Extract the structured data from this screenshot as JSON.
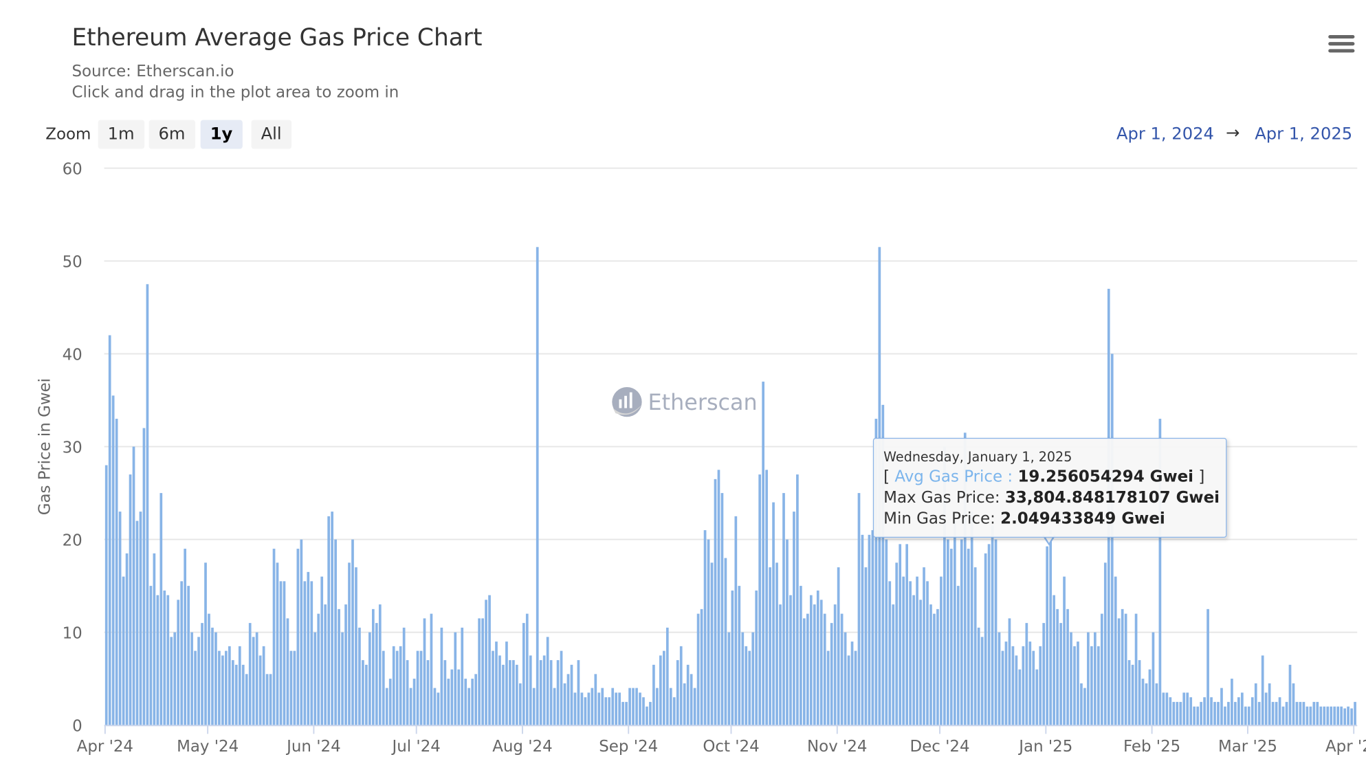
{
  "header": {
    "title": "Ethereum Average Gas Price Chart",
    "source": "Source: Etherscan.io",
    "hint": "Click and drag in the plot area to zoom in",
    "menu_icon": "hamburger-menu-icon"
  },
  "zoom": {
    "label": "Zoom",
    "buttons": [
      "1m",
      "6m",
      "1y",
      "All"
    ],
    "selected": "1y"
  },
  "range": {
    "from": "Apr 1, 2024",
    "arrow": "→",
    "to": "Apr 1, 2025"
  },
  "watermark": {
    "text": "Etherscan"
  },
  "tooltip": {
    "date": "Wednesday, January 1, 2025",
    "open": "[ ",
    "avg_label": "Avg Gas Price :",
    "avg_value": "19.256054294 Gwei",
    "close": " ]",
    "max_label": "Max Gas Price:",
    "max_value": "33,804.848178107 Gwei",
    "min_label": "Min Gas Price:",
    "min_value": "2.049433849 Gwei"
  },
  "colors": {
    "bar": "#88b4e7",
    "grid": "#e6e6e6",
    "range_text": "#3355aa"
  },
  "chart_data": {
    "type": "bar",
    "title": "Ethereum Average Gas Price Chart",
    "ylabel": "Gas Price in Gwei",
    "xlabel": "",
    "ylim": [
      0,
      60
    ],
    "yticks": [
      0,
      10,
      20,
      30,
      40,
      50,
      60
    ],
    "x_start": "2024-04-01",
    "x_end": "2025-04-01",
    "xtick_labels": [
      "Apr '24",
      "May '24",
      "Jun '24",
      "Jul '24",
      "Aug '24",
      "Sep '24",
      "Oct '24",
      "Nov '24",
      "Dec '24",
      "Jan '25",
      "Feb '25",
      "Mar '25",
      "Apr '25"
    ],
    "grid": true,
    "legend": "none",
    "highlighted": "2025-01-01",
    "months": [
      {
        "month": "2024-04",
        "values": [
          28,
          42,
          35.5,
          33,
          23,
          16,
          18.5,
          27,
          30,
          22,
          23,
          32,
          47.5,
          15,
          18.5,
          14,
          25,
          14.5,
          14,
          9.5,
          10,
          13.5,
          15.5,
          19,
          15,
          10,
          8,
          9.5,
          11,
          17.5
        ]
      },
      {
        "month": "2024-05",
        "values": [
          12,
          10.5,
          10,
          8,
          7.5,
          8,
          8.5,
          7,
          6.5,
          8.5,
          6.5,
          5.5,
          11,
          9.5,
          10,
          7.5,
          8.5,
          5.5,
          5.5,
          19,
          17.5,
          15.5,
          15.5,
          11.5,
          8,
          8,
          19,
          20,
          15.5,
          16.5,
          15.5
        ]
      },
      {
        "month": "2024-06",
        "values": [
          10,
          12,
          16,
          13,
          22.5,
          23,
          20,
          12.5,
          10,
          13,
          17.5,
          20,
          17,
          10.5,
          7,
          6.5,
          10,
          12.5,
          11,
          13,
          8,
          4,
          5,
          8.5,
          8,
          8.5,
          10.5,
          7,
          4,
          5
        ]
      },
      {
        "month": "2024-07",
        "values": [
          8,
          8,
          11.5,
          7,
          12,
          4,
          3.5,
          10.5,
          7,
          5,
          6,
          10,
          6,
          10.5,
          5,
          4,
          5,
          5.5,
          11.5,
          11.5,
          13.5,
          14,
          8,
          9,
          7.5,
          6.5,
          9,
          7,
          7,
          6.5,
          4.5
        ]
      },
      {
        "month": "2024-08",
        "values": [
          11,
          12,
          7.5,
          4,
          51.5,
          7,
          7.5,
          9.5,
          7,
          4,
          7,
          8,
          4.5,
          5.5,
          6.5,
          3.5,
          7,
          3.5,
          3,
          3.5,
          4,
          5.5,
          3.5,
          4,
          3,
          3,
          4,
          3.5,
          3.5,
          2.5,
          2.5
        ]
      },
      {
        "month": "2024-09",
        "values": [
          4,
          4,
          4,
          3.5,
          3,
          2,
          2.5,
          6.5,
          4,
          7.5,
          8,
          10.5,
          4,
          3,
          7,
          8.5,
          4.5,
          6.5,
          5.5,
          4,
          12,
          12.5,
          21,
          20,
          17.5,
          26.5,
          27.5,
          25,
          18,
          10
        ]
      },
      {
        "month": "2024-10",
        "values": [
          14.5,
          22.5,
          15,
          10,
          8.5,
          8,
          10,
          14.5,
          27,
          37,
          27.5,
          17,
          24,
          17.5,
          13,
          25,
          20,
          14,
          23,
          27,
          15,
          11.5,
          12,
          14,
          13,
          14.5,
          13.5,
          12,
          8,
          11,
          13
        ]
      },
      {
        "month": "2024-11",
        "values": [
          17,
          12,
          10,
          7.5,
          9,
          8,
          25,
          20.5,
          17,
          20.5,
          21,
          33,
          51.5,
          34.5,
          20,
          15.5,
          13,
          17.5,
          19.5,
          16,
          19.5,
          15.5,
          14,
          16,
          13.5,
          17,
          15.5,
          13,
          12,
          12.5
        ]
      },
      {
        "month": "2024-12",
        "values": [
          16,
          30,
          20,
          19,
          22,
          15,
          20,
          31.5,
          19,
          23,
          17,
          10.5,
          9.5,
          18.5,
          19.5,
          21.5,
          20,
          10,
          8,
          9,
          11.5,
          8.5,
          7.5,
          6,
          8.5,
          11,
          9,
          8,
          6,
          8.5,
          11
        ]
      },
      {
        "month": "2025-01",
        "values": [
          19.256,
          21,
          14,
          12.5,
          11,
          16,
          12.5,
          10,
          8.5,
          9,
          4.5,
          4,
          10,
          8.5,
          10,
          8.5,
          12,
          17.5,
          47,
          40,
          16,
          11.5,
          12.5,
          12,
          7,
          6.5,
          12,
          7,
          5,
          4.5,
          6
        ]
      },
      {
        "month": "2025-02",
        "values": [
          10,
          4.5,
          33,
          3.5,
          3.5,
          3,
          2.5,
          2.5,
          2.5,
          3.5,
          3.5,
          3,
          2,
          2,
          2.5,
          3,
          12.5,
          3,
          2.5,
          2.5,
          4,
          2,
          2.5,
          5,
          2.5,
          3,
          3.5,
          2
        ]
      },
      {
        "month": "2025-03",
        "values": [
          2,
          3,
          4.5,
          2.5,
          7.5,
          3.5,
          4.5,
          2.5,
          2.5,
          3,
          2,
          2.5,
          6.5,
          4.5,
          2.5,
          2.5,
          2.5,
          2,
          2,
          2.5,
          2.5,
          2,
          2,
          2,
          2,
          2,
          2,
          2,
          1.8,
          2,
          1.8
        ]
      },
      {
        "month": "2025-04",
        "values": [
          2.5
        ]
      }
    ]
  }
}
